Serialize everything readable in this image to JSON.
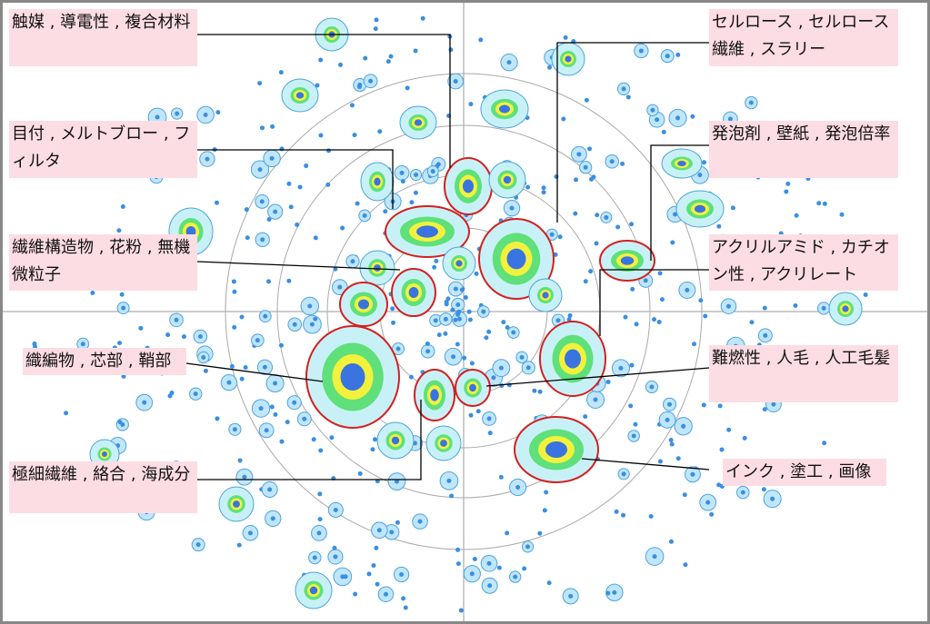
{
  "labels": [
    {
      "text": "触媒 , 導電性 , 複合材料"
    },
    {
      "text": "目付 , メルトブロー , フィルタ"
    },
    {
      "text": "繊維構造物 , 花粉 , 無機微粒子"
    },
    {
      "text": "織編物 , 芯部 , 鞘部"
    },
    {
      "text": "極細繊維 , 絡合 , 海成分"
    },
    {
      "text": "セルロース , セルロース繊維 , スラリー"
    },
    {
      "text": "発泡剤 , 壁紙 , 発泡倍率"
    },
    {
      "text": "アクリルアミド , カチオン性 , アクリレート"
    },
    {
      "text": "難燃性 , 人毛 , 人工毛髪"
    },
    {
      "text": "インク , 塗工 , 画像"
    }
  ]
}
